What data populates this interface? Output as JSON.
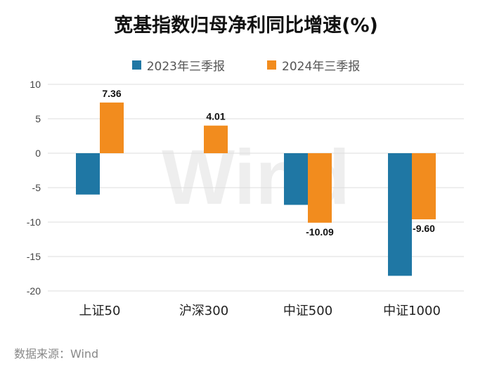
{
  "chart_data": {
    "type": "bar",
    "title": "宽基指数归母净利同比增速(%)",
    "categories": [
      "上证50",
      "沪深300",
      "中证500",
      "中证1000"
    ],
    "series": [
      {
        "name": "2023年三季报",
        "values": [
          -6.0,
          0.0,
          -7.5,
          -17.8
        ],
        "labels": [
          "",
          "",
          "",
          ""
        ]
      },
      {
        "name": "2024年三季报",
        "values": [
          7.36,
          4.01,
          -10.09,
          -9.6
        ],
        "labels": [
          "7.36",
          "4.01",
          "-10.09",
          "-9.60"
        ]
      }
    ],
    "ylim": [
      -20,
      10
    ],
    "yticks": [
      "10",
      "5",
      "0",
      "-5",
      "-10",
      "-15",
      "-20"
    ],
    "ytick_values": [
      10,
      5,
      0,
      -5,
      -10,
      -15,
      -20
    ],
    "xlabel": "",
    "ylabel": "",
    "grid": true,
    "legend_position": "top",
    "watermark": "Wind"
  },
  "colors": {
    "series1": "#1f77a4",
    "series2": "#f28c1e",
    "grid": "#dddddd",
    "watermark": "#eeeeee"
  },
  "source": "数据来源：Wind"
}
